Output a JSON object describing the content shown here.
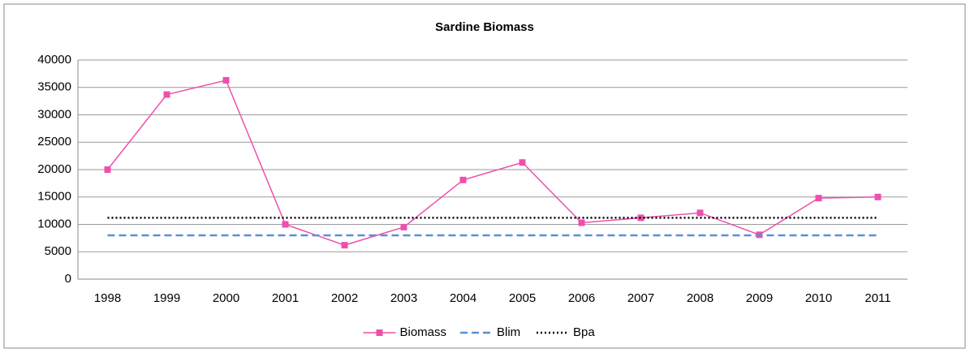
{
  "chart_data": {
    "type": "line",
    "title": "Sardine Biomass",
    "categories": [
      "1998",
      "1999",
      "2000",
      "2001",
      "2002",
      "2003",
      "2004",
      "2005",
      "2006",
      "2007",
      "2008",
      "2009",
      "2010",
      "2011"
    ],
    "series": [
      {
        "name": "Biomass",
        "color": "#ee4fae",
        "style": "solid",
        "marker": "square",
        "values": [
          20000,
          33700,
          36300,
          10000,
          6200,
          9500,
          18100,
          21300,
          10300,
          11200,
          12100,
          8100,
          14800,
          15000
        ]
      },
      {
        "name": "Blim",
        "color": "#5b8fd6",
        "style": "dashed",
        "values": [
          8000,
          8000,
          8000,
          8000,
          8000,
          8000,
          8000,
          8000,
          8000,
          8000,
          8000,
          8000,
          8000,
          8000
        ]
      },
      {
        "name": "Bpa",
        "color": "#000000",
        "style": "dotted",
        "values": [
          11200,
          11200,
          11200,
          11200,
          11200,
          11200,
          11200,
          11200,
          11200,
          11200,
          11200,
          11200,
          11200,
          11200
        ]
      }
    ],
    "ylim": [
      0,
      40000
    ],
    "yticks": [
      0,
      5000,
      10000,
      15000,
      20000,
      25000,
      30000,
      35000,
      40000
    ],
    "grid": true,
    "legend": "bottom"
  }
}
